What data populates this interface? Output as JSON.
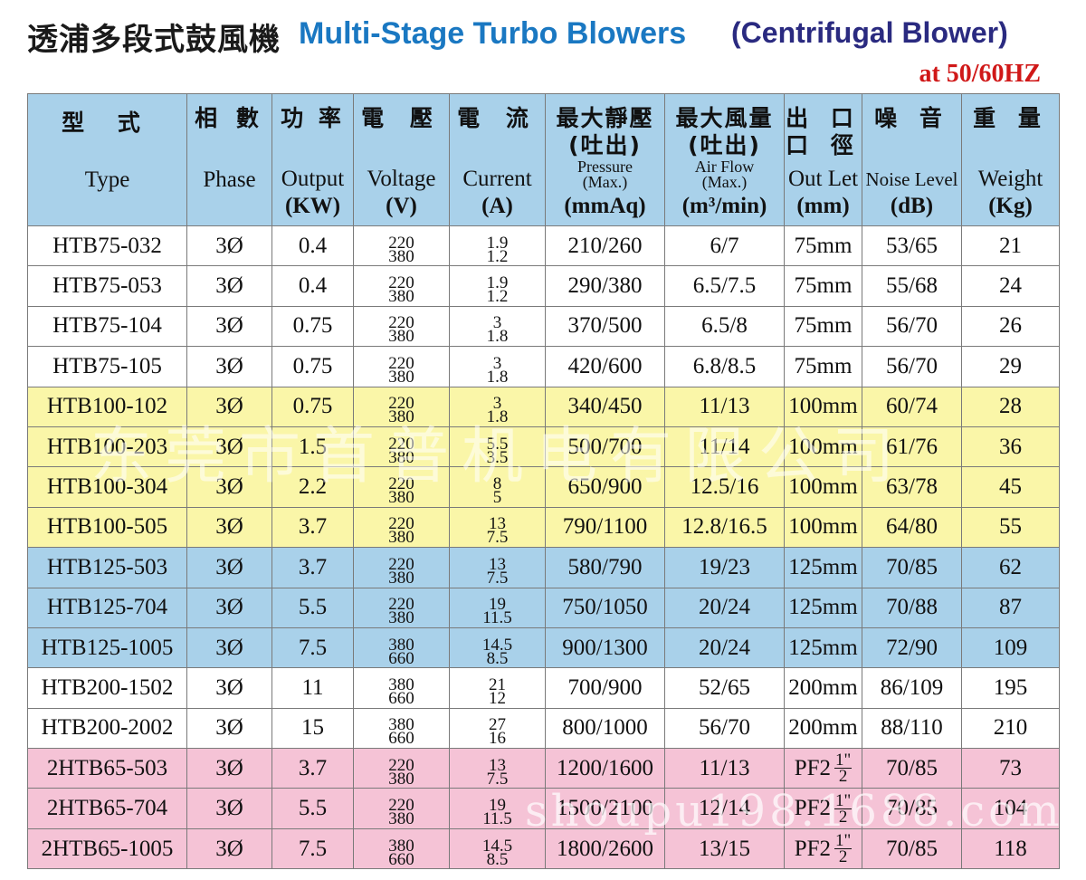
{
  "title": {
    "cn": "透浦多段式鼓風機",
    "en": "Multi-Stage Turbo  Blowers",
    "paren": "(Centrifugal Blower)",
    "freq": "at 50/60HZ"
  },
  "headers": {
    "type": {
      "cn": "型 式",
      "en": "Type"
    },
    "phase": {
      "cn": "相 數",
      "en": "Phase"
    },
    "output": {
      "cn": "功 率",
      "en": "Output",
      "unit": "(KW)"
    },
    "voltage": {
      "cn": "電 壓",
      "en": "Voltage",
      "unit": "(V)"
    },
    "current": {
      "cn": "電 流",
      "en": "Current",
      "unit": "(A)"
    },
    "pressure": {
      "cn1": "最大靜壓",
      "cn2": "(吐出)",
      "en1": "Pressure",
      "en2": "(Max.)",
      "unit": "(mmAq)"
    },
    "airflow": {
      "cn1": "最大風量",
      "cn2": "(吐出)",
      "en1": "Air Flow",
      "en2": "(Max.)",
      "unit": "(m³/min)"
    },
    "outlet": {
      "cn1": "出 口",
      "cn2": "口 徑",
      "en": "Out Let",
      "unit": "(mm)"
    },
    "noise": {
      "cn": "噪 音",
      "en": "Noise Level",
      "unit": "(dB)"
    },
    "weight": {
      "cn": "重 量",
      "en": "Weight",
      "unit": "(Kg)"
    }
  },
  "rows": [
    {
      "type": "HTB75-032",
      "phase": "3Ø",
      "output": "0.4",
      "v1": "220",
      "v2": "380",
      "a1": "1.9",
      "a2": "1.2",
      "pressure": "210/260",
      "airflow": "6/7",
      "outlet": "75mm",
      "noise": "53/65",
      "weight": "21"
    },
    {
      "type": "HTB75-053",
      "phase": "3Ø",
      "output": "0.4",
      "v1": "220",
      "v2": "380",
      "a1": "1.9",
      "a2": "1.2",
      "pressure": "290/380",
      "airflow": "6.5/7.5",
      "outlet": "75mm",
      "noise": "55/68",
      "weight": "24"
    },
    {
      "type": "HTB75-104",
      "phase": "3Ø",
      "output": "0.75",
      "v1": "220",
      "v2": "380",
      "a1": "3",
      "a2": "1.8",
      "pressure": "370/500",
      "airflow": "6.5/8",
      "outlet": "75mm",
      "noise": "56/70",
      "weight": "26"
    },
    {
      "type": "HTB75-105",
      "phase": "3Ø",
      "output": "0.75",
      "v1": "220",
      "v2": "380",
      "a1": "3",
      "a2": "1.8",
      "pressure": "420/600",
      "airflow": "6.8/8.5",
      "outlet": "75mm",
      "noise": "56/70",
      "weight": "29"
    },
    {
      "type": "HTB100-102",
      "phase": "3Ø",
      "output": "0.75",
      "v1": "220",
      "v2": "380",
      "a1": "3",
      "a2": "1.8",
      "pressure": "340/450",
      "airflow": "11/13",
      "outlet": "100mm",
      "noise": "60/74",
      "weight": "28"
    },
    {
      "type": "HTB100-203",
      "phase": "3Ø",
      "output": "1.5",
      "v1": "220",
      "v2": "380",
      "a1": "5.5",
      "a2": "3.5",
      "pressure": "500/700",
      "airflow": "11/14",
      "outlet": "100mm",
      "noise": "61/76",
      "weight": "36"
    },
    {
      "type": "HTB100-304",
      "phase": "3Ø",
      "output": "2.2",
      "v1": "220",
      "v2": "380",
      "a1": "8",
      "a2": "5",
      "pressure": "650/900",
      "airflow": "12.5/16",
      "outlet": "100mm",
      "noise": "63/78",
      "weight": "45"
    },
    {
      "type": "HTB100-505",
      "phase": "3Ø",
      "output": "3.7",
      "v1": "220",
      "v2": "380",
      "a1": "13",
      "a2": "7.5",
      "pressure": "790/1100",
      "airflow": "12.8/16.5",
      "outlet": "100mm",
      "noise": "64/80",
      "weight": "55"
    },
    {
      "type": "HTB125-503",
      "phase": "3Ø",
      "output": "3.7",
      "v1": "220",
      "v2": "380",
      "a1": "13",
      "a2": "7.5",
      "pressure": "580/790",
      "airflow": "19/23",
      "outlet": "125mm",
      "noise": "70/85",
      "weight": "62"
    },
    {
      "type": "HTB125-704",
      "phase": "3Ø",
      "output": "5.5",
      "v1": "220",
      "v2": "380",
      "a1": "19",
      "a2": "11.5",
      "pressure": "750/1050",
      "airflow": "20/24",
      "outlet": "125mm",
      "noise": "70/88",
      "weight": "87"
    },
    {
      "type": "HTB125-1005",
      "phase": "3Ø",
      "output": "7.5",
      "v1": "380",
      "v2": "660",
      "a1": "14.5",
      "a2": "8.5",
      "pressure": "900/1300",
      "airflow": "20/24",
      "outlet": "125mm",
      "noise": "72/90",
      "weight": "109"
    },
    {
      "type": "HTB200-1502",
      "phase": "3Ø",
      "output": "11",
      "v1": "380",
      "v2": "660",
      "a1": "21",
      "a2": "12",
      "pressure": "700/900",
      "airflow": "52/65",
      "outlet": "200mm",
      "noise": "86/109",
      "weight": "195"
    },
    {
      "type": "HTB200-2002",
      "phase": "3Ø",
      "output": "15",
      "v1": "380",
      "v2": "660",
      "a1": "27",
      "a2": "16",
      "pressure": "800/1000",
      "airflow": "56/70",
      "outlet": "200mm",
      "noise": "88/110",
      "weight": "210"
    },
    {
      "type": "2HTB65-503",
      "phase": "3Ø",
      "output": "3.7",
      "v1": "220",
      "v2": "380",
      "a1": "13",
      "a2": "7.5",
      "pressure": "1200/1600",
      "airflow": "11/13",
      "outlet": "PF2",
      "outlet_num": "1\"",
      "outlet_den": "2",
      "noise": "70/85",
      "weight": "73"
    },
    {
      "type": "2HTB65-704",
      "phase": "3Ø",
      "output": "5.5",
      "v1": "220",
      "v2": "380",
      "a1": "19",
      "a2": "11.5",
      "pressure": "1500/2100",
      "airflow": "12/14",
      "outlet": "PF2",
      "outlet_num": "1\"",
      "outlet_den": "2",
      "noise": "70/85",
      "weight": "104"
    },
    {
      "type": "2HTB65-1005",
      "phase": "3Ø",
      "output": "7.5",
      "v1": "380",
      "v2": "660",
      "a1": "14.5",
      "a2": "8.5",
      "pressure": "1800/2600",
      "airflow": "13/15",
      "outlet": "PF2",
      "outlet_num": "1\"",
      "outlet_den": "2",
      "noise": "70/85",
      "weight": "118"
    }
  ],
  "row_groups": [
    "white",
    "white",
    "white",
    "white",
    "yellow",
    "yellow",
    "yellow",
    "yellow",
    "blue",
    "blue",
    "blue",
    "white",
    "white",
    "pink",
    "pink",
    "pink"
  ],
  "watermarks": {
    "cn": "东莞市首普机电有限公司",
    "url": "shoupu198.1688.com"
  }
}
